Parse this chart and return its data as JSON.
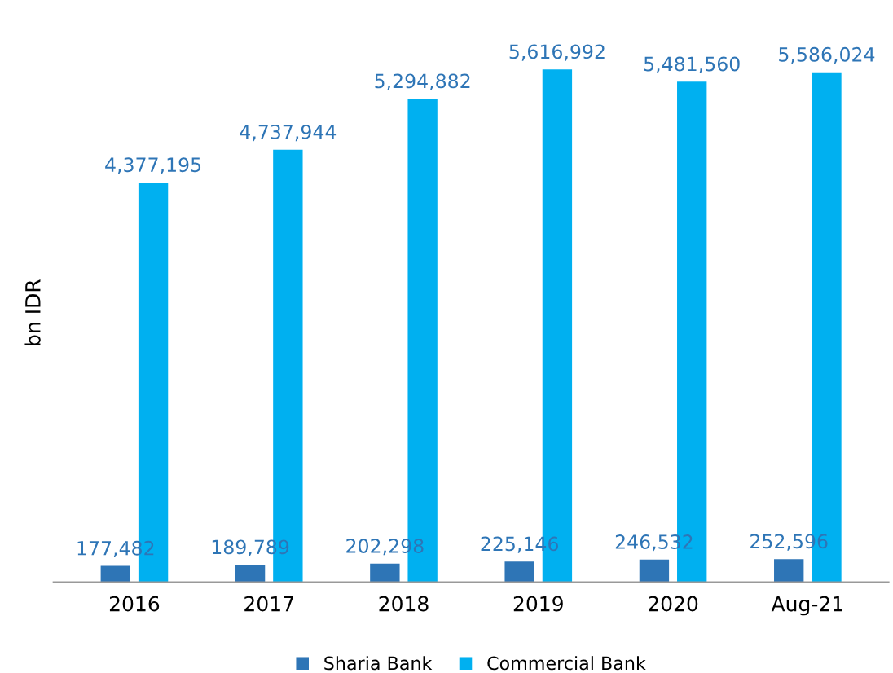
{
  "chart_data": {
    "type": "bar",
    "ylabel": "bn IDR",
    "categories": [
      "2016",
      "2017",
      "2018",
      "2019",
      "2020",
      "Aug-21"
    ],
    "series": [
      {
        "name": "Sharia Bank",
        "color": "#2e75b6",
        "values": [
          177482,
          189789,
          202298,
          225146,
          246532,
          252596
        ],
        "value_labels": [
          "177,482",
          "189,789",
          "202,298",
          "225,146",
          "246,532",
          "252,596"
        ]
      },
      {
        "name": "Commercial Bank",
        "color": "#00b0f0",
        "values": [
          4377195,
          4737944,
          5294882,
          5616992,
          5481560,
          5586024
        ],
        "value_labels": [
          "4,377,195",
          "4,737,944",
          "5,294,882",
          "5,616,992",
          "5,481,560",
          "5,586,024"
        ]
      }
    ],
    "legend": "bottom",
    "grid": false,
    "tick_labels": "x"
  }
}
